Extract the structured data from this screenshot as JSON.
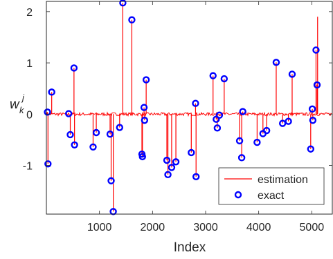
{
  "chart_data": {
    "type": "stem",
    "xlabel": "Index",
    "ylabel_main": "w",
    "ylabel_sub": "k",
    "ylabel_sup": "j",
    "xlim": [
      0,
      5400
    ],
    "ylim": [
      -1.95,
      2.2
    ],
    "xticks": [
      1000,
      2000,
      3000,
      4000,
      5000
    ],
    "yticks": [
      -1,
      0,
      1,
      2
    ],
    "ytick_labels": [
      "-1",
      "0",
      "1",
      "2"
    ],
    "grid": false,
    "legend_position": "bottom-right",
    "colors": {
      "estimation": "#ff0000",
      "exact": "#0000ff",
      "axes": "#262626"
    },
    "series": [
      {
        "name": "estimation",
        "style": "line",
        "noise_level": 0.03,
        "points": [
          [
            20,
            0.04
          ],
          [
            30,
            -0.97
          ],
          [
            100,
            0.43
          ],
          [
            420,
            0.01
          ],
          [
            450,
            -0.4
          ],
          [
            520,
            0.9
          ],
          [
            530,
            -0.6
          ],
          [
            880,
            -0.64
          ],
          [
            940,
            -0.36
          ],
          [
            1200,
            -0.39
          ],
          [
            1220,
            -1.3
          ],
          [
            1260,
            -1.9
          ],
          [
            1380,
            -0.26
          ],
          [
            1440,
            2.17
          ],
          [
            1610,
            1.84
          ],
          [
            1800,
            -0.78
          ],
          [
            1810,
            -0.83
          ],
          [
            1840,
            0.13
          ],
          [
            1850,
            -0.12
          ],
          [
            1880,
            0.67
          ],
          [
            2270,
            -0.9
          ],
          [
            2290,
            -1.18
          ],
          [
            2360,
            -1.04
          ],
          [
            2440,
            -0.93
          ],
          [
            2730,
            -0.75
          ],
          [
            2810,
            0.21
          ],
          [
            2820,
            -1.22
          ],
          [
            3140,
            0.75
          ],
          [
            3200,
            -0.1
          ],
          [
            3220,
            -0.27
          ],
          [
            3260,
            -0.02
          ],
          [
            3350,
            0.69
          ],
          [
            3640,
            -0.52
          ],
          [
            3680,
            -0.85
          ],
          [
            3700,
            0.05
          ],
          [
            3970,
            -0.55
          ],
          [
            4080,
            -0.38
          ],
          [
            4150,
            -0.32
          ],
          [
            4330,
            1.01
          ],
          [
            4450,
            -0.18
          ],
          [
            4560,
            -0.14
          ],
          [
            4630,
            0.78
          ],
          [
            4980,
            -0.68
          ],
          [
            5010,
            0.1
          ],
          [
            5020,
            -0.12
          ],
          [
            5080,
            1.25
          ],
          [
            5100,
            0.57
          ],
          [
            5110,
            1.9
          ]
        ]
      },
      {
        "name": "exact",
        "style": "circle",
        "points": [
          [
            20,
            0.04
          ],
          [
            30,
            -0.97
          ],
          [
            100,
            0.43
          ],
          [
            420,
            0.01
          ],
          [
            450,
            -0.4
          ],
          [
            520,
            0.9
          ],
          [
            530,
            -0.6
          ],
          [
            880,
            -0.64
          ],
          [
            940,
            -0.36
          ],
          [
            1200,
            -0.39
          ],
          [
            1220,
            -1.3
          ],
          [
            1260,
            -1.9
          ],
          [
            1380,
            -0.26
          ],
          [
            1440,
            2.17
          ],
          [
            1610,
            1.84
          ],
          [
            1800,
            -0.78
          ],
          [
            1810,
            -0.83
          ],
          [
            1840,
            0.13
          ],
          [
            1850,
            -0.12
          ],
          [
            1880,
            0.67
          ],
          [
            2270,
            -0.9
          ],
          [
            2290,
            -1.18
          ],
          [
            2360,
            -1.04
          ],
          [
            2440,
            -0.93
          ],
          [
            2730,
            -0.75
          ],
          [
            2810,
            0.21
          ],
          [
            2820,
            -1.22
          ],
          [
            3140,
            0.75
          ],
          [
            3200,
            -0.1
          ],
          [
            3220,
            -0.27
          ],
          [
            3260,
            -0.02
          ],
          [
            3350,
            0.69
          ],
          [
            3640,
            -0.52
          ],
          [
            3680,
            -0.85
          ],
          [
            3700,
            0.05
          ],
          [
            3970,
            -0.55
          ],
          [
            4080,
            -0.38
          ],
          [
            4150,
            -0.32
          ],
          [
            4330,
            1.01
          ],
          [
            4450,
            -0.18
          ],
          [
            4560,
            -0.14
          ],
          [
            4630,
            0.78
          ],
          [
            4980,
            -0.68
          ],
          [
            5010,
            0.1
          ],
          [
            5020,
            -0.12
          ],
          [
            5080,
            1.25
          ],
          [
            5100,
            0.57
          ]
        ]
      }
    ]
  }
}
